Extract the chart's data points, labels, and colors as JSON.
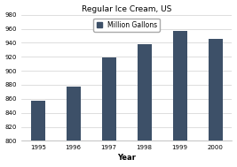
{
  "title": "Regular Ice Cream, US",
  "xlabel": "Year",
  "categories": [
    "1995",
    "1996",
    "1997",
    "1998",
    "1999",
    "2000"
  ],
  "values": [
    857,
    877,
    919,
    938,
    957,
    946
  ],
  "bar_color": "#3d5068",
  "ylim": [
    800,
    980
  ],
  "yticks": [
    800,
    820,
    840,
    860,
    880,
    900,
    920,
    940,
    960,
    980
  ],
  "legend_label": "Million Gallons",
  "title_fontsize": 6.5,
  "xlabel_fontsize": 6,
  "tick_fontsize": 5,
  "legend_fontsize": 5.5,
  "bar_width": 0.4,
  "background_color": "#ffffff",
  "grid_color": "#d0d0d0"
}
